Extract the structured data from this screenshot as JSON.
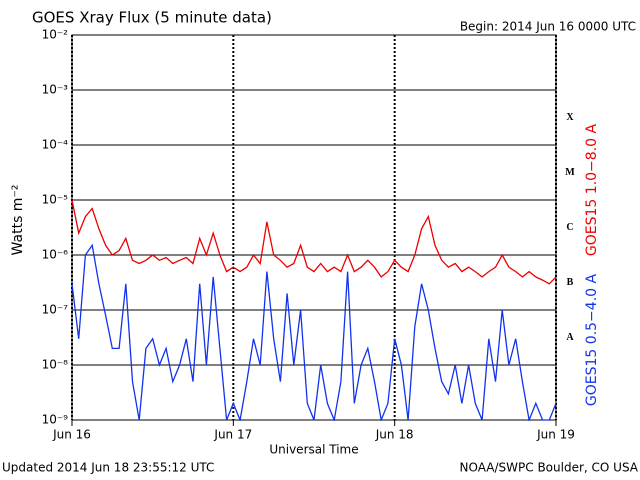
{
  "chart_data": {
    "type": "line",
    "title": "GOES Xray Flux (5 minute data)",
    "subtitle": "Begin:  2014 Jun 16 0000 UTC",
    "y_label": "Watts m⁻²",
    "x_label": "Universal Time",
    "footer_left": "Updated 2014 Jun 18 23:55:12 UTC",
    "footer_right": "NOAA/SWPC Boulder, CO USA",
    "log_scale": true,
    "grid": true,
    "xlim": [
      0,
      72
    ],
    "xticks": [
      {
        "value": 0,
        "label": "Jun 16"
      },
      {
        "value": 24,
        "label": "Jun 17"
      },
      {
        "value": 48,
        "label": "Jun 18"
      },
      {
        "value": 72,
        "label": "Jun 19"
      }
    ],
    "ylim": [
      1e-09,
      0.01
    ],
    "yticks": [
      {
        "value": 1e-09,
        "label": "10⁻⁹"
      },
      {
        "value": 1e-08,
        "label": "10⁻⁸"
      },
      {
        "value": 1e-07,
        "label": "10⁻⁷"
      },
      {
        "value": 1e-06,
        "label": "10⁻⁶"
      },
      {
        "value": 1e-05,
        "label": "10⁻⁵"
      },
      {
        "value": 0.0001,
        "label": "10⁻⁴"
      },
      {
        "value": 0.001,
        "label": "10⁻³"
      },
      {
        "value": 0.01,
        "label": "10⁻²"
      }
    ],
    "flare_classes": [
      {
        "label": "X",
        "value": 0.0001
      },
      {
        "label": "M",
        "value": 1e-05
      },
      {
        "label": "C",
        "value": 1e-06
      },
      {
        "label": "B",
        "value": 1e-07
      },
      {
        "label": "A",
        "value": 1e-08
      }
    ],
    "x": [
      0,
      1,
      2,
      3,
      4,
      5,
      6,
      7,
      8,
      9,
      10,
      11,
      12,
      13,
      14,
      15,
      16,
      17,
      18,
      19,
      20,
      21,
      22,
      23,
      24,
      25,
      26,
      27,
      28,
      29,
      30,
      31,
      32,
      33,
      34,
      35,
      36,
      37,
      38,
      39,
      40,
      41,
      42,
      43,
      44,
      45,
      46,
      47,
      48,
      49,
      50,
      51,
      52,
      53,
      54,
      55,
      56,
      57,
      58,
      59,
      60,
      61,
      62,
      63,
      64,
      65,
      66,
      67,
      68,
      69,
      70,
      71,
      72
    ],
    "series": [
      {
        "name": "GOES15 1.0−8.0 A",
        "color": "#ee0000",
        "values": [
          1e-05,
          2.5e-06,
          5e-06,
          7e-06,
          3e-06,
          1.5e-06,
          1e-06,
          1.2e-06,
          2e-06,
          8e-07,
          7e-07,
          8e-07,
          1e-06,
          8e-07,
          9e-07,
          7e-07,
          8e-07,
          9e-07,
          7e-07,
          2e-06,
          1e-06,
          2.5e-06,
          1e-06,
          5e-07,
          6e-07,
          5e-07,
          6e-07,
          1e-06,
          7e-07,
          4e-06,
          1e-06,
          8e-07,
          6e-07,
          7e-07,
          1.5e-06,
          6e-07,
          5e-07,
          7e-07,
          5e-07,
          6e-07,
          5e-07,
          1e-06,
          5e-07,
          6e-07,
          8e-07,
          6e-07,
          4e-07,
          5e-07,
          8e-07,
          6e-07,
          5e-07,
          1e-06,
          3e-06,
          5e-06,
          1.5e-06,
          8e-07,
          6e-07,
          7e-07,
          5e-07,
          6e-07,
          5e-07,
          4e-07,
          5e-07,
          6e-07,
          1e-06,
          6e-07,
          5e-07,
          4e-07,
          5e-07,
          4e-07,
          3.5e-07,
          3e-07,
          4e-07
        ]
      },
      {
        "name": "GOES15 0.5−4.0 A",
        "color": "#1133ee",
        "values": [
          3e-07,
          3e-08,
          1e-06,
          1.5e-06,
          3e-07,
          8e-08,
          2e-08,
          2e-08,
          3e-07,
          5e-09,
          1e-09,
          2e-08,
          3e-08,
          1e-08,
          2e-08,
          5e-09,
          1e-08,
          3e-08,
          5e-09,
          3e-07,
          1e-08,
          4e-07,
          2e-08,
          1e-09,
          2e-09,
          1e-09,
          5e-09,
          3e-08,
          1e-08,
          5e-07,
          3e-08,
          5e-09,
          2e-07,
          1e-08,
          1e-07,
          2e-09,
          1e-09,
          1e-08,
          2e-09,
          1e-09,
          5e-09,
          5e-07,
          2e-09,
          1e-08,
          2e-08,
          5e-09,
          1e-09,
          2e-09,
          3e-08,
          1e-08,
          1e-09,
          5e-08,
          3e-07,
          1e-07,
          2e-08,
          5e-09,
          3e-09,
          1e-08,
          2e-09,
          1e-08,
          2e-09,
          1e-09,
          3e-08,
          5e-09,
          1e-07,
          1e-08,
          3e-08,
          5e-09,
          1e-09,
          2e-09,
          1e-09,
          1e-09,
          2e-09
        ]
      }
    ]
  }
}
